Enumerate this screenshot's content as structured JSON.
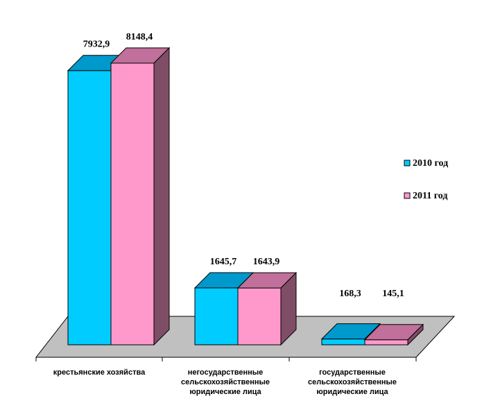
{
  "chart_data": {
    "type": "bar",
    "categories": [
      [
        "крестьянские хозяйства"
      ],
      [
        "негосударственные",
        "сельскохозяйственные",
        "юридические лица"
      ],
      [
        "государственные",
        "сельскохозяйственные",
        "юридические лица"
      ]
    ],
    "series": [
      {
        "name": "2010 год",
        "values": [
          7932.9,
          1645.7,
          168.3
        ],
        "labels": [
          "7932,9",
          "1645,7",
          "168,3"
        ],
        "color": "#00ccff",
        "top_color": "#0099cc",
        "side_color": "#007fa6"
      },
      {
        "name": "2011 год",
        "values": [
          8148.4,
          1643.9,
          145.1
        ],
        "labels": [
          "8148,4",
          "1643,9",
          "145,1"
        ],
        "color": "#ff99cc",
        "top_color": "#c0709a",
        "side_color": "#804d66"
      }
    ],
    "ylim": [
      0,
      8148.4
    ],
    "legend_position": "right",
    "floor_color": "#c0c0c0",
    "three_d": true
  }
}
